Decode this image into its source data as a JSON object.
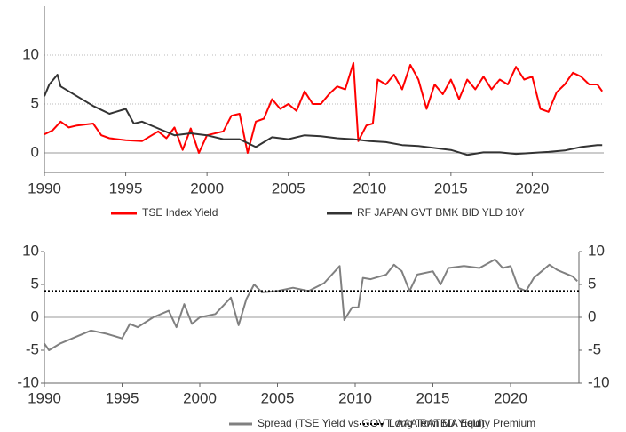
{
  "chart_data": [
    {
      "type": "line",
      "xlim": [
        1990,
        2024.4
      ],
      "xticks": [
        1990,
        1995,
        2000,
        2005,
        2010,
        2015,
        2020
      ],
      "ylim": [
        -2,
        15
      ],
      "yticks": [
        0,
        5,
        10
      ],
      "grid": true,
      "series": [
        {
          "name": "TSE Index Yield",
          "color": "#ff0000",
          "x": [
            1990,
            1990.5,
            1991,
            1991.5,
            1992,
            1993,
            1993.5,
            1994,
            1995,
            1996,
            1997,
            1997.5,
            1998,
            1998.5,
            1999,
            1999.5,
            2000,
            2001,
            2001.5,
            2002,
            2002.5,
            2003,
            2003.5,
            2004,
            2004.5,
            2005,
            2005.5,
            2006,
            2006.5,
            2007,
            2007.5,
            2008,
            2008.5,
            2009,
            2009.3,
            2009.8,
            2010.2,
            2010.5,
            2011,
            2011.5,
            2012,
            2012.5,
            2013,
            2013.5,
            2014,
            2014.5,
            2015,
            2015.5,
            2016,
            2016.5,
            2017,
            2017.5,
            2018,
            2018.5,
            2019,
            2019.5,
            2020,
            2020.5,
            2021,
            2021.5,
            2022,
            2022.5,
            2023,
            2023.5,
            2024,
            2024.3
          ],
          "values": [
            1.9,
            2.3,
            3.2,
            2.6,
            2.8,
            3.0,
            1.8,
            1.5,
            1.3,
            1.2,
            2.2,
            1.5,
            2.6,
            0.3,
            2.5,
            0.0,
            1.8,
            2.2,
            3.8,
            4.0,
            0.0,
            3.2,
            3.5,
            5.5,
            4.5,
            5.0,
            4.3,
            6.3,
            5.0,
            5.0,
            6.0,
            6.8,
            6.5,
            9.2,
            1.2,
            2.8,
            3.0,
            7.5,
            7.0,
            8.0,
            6.5,
            9.0,
            7.5,
            4.5,
            7.0,
            6.0,
            7.5,
            5.5,
            7.5,
            6.5,
            7.8,
            6.5,
            7.5,
            7.0,
            8.8,
            7.5,
            7.8,
            4.5,
            4.2,
            6.2,
            7.0,
            8.2,
            7.8,
            7.0,
            7.0,
            6.3
          ]
        },
        {
          "name": "RF JAPAN GVT BMK BID YLD 10Y",
          "color": "#333333",
          "x": [
            1990,
            1990.3,
            1990.8,
            1991,
            1992,
            1993,
            1994,
            1995,
            1995.5,
            1996,
            1997,
            1998,
            1999,
            2000,
            2001,
            2002,
            2003,
            2004,
            2005,
            2006,
            2007,
            2008,
            2009,
            2010,
            2011,
            2012,
            2013,
            2014,
            2015,
            2016,
            2017,
            2018,
            2019,
            2020,
            2021,
            2022,
            2023,
            2024,
            2024.3
          ],
          "values": [
            5.8,
            7.0,
            8.0,
            6.8,
            5.8,
            4.8,
            4.0,
            4.5,
            3.0,
            3.2,
            2.5,
            1.8,
            2.0,
            1.8,
            1.4,
            1.4,
            0.6,
            1.6,
            1.4,
            1.8,
            1.7,
            1.5,
            1.4,
            1.2,
            1.1,
            0.8,
            0.7,
            0.5,
            0.3,
            -0.2,
            0.05,
            0.05,
            -0.1,
            0.0,
            0.1,
            0.25,
            0.6,
            0.8,
            0.8
          ]
        }
      ]
    },
    {
      "type": "line",
      "xlim": [
        1990,
        2024.4
      ],
      "xticks": [
        1990,
        1995,
        2000,
        2005,
        2010,
        2015,
        2020
      ],
      "ylim": [
        -10,
        10
      ],
      "yticks": [
        -10,
        -5,
        0,
        5,
        10
      ],
      "y2lim": [
        -10,
        10
      ],
      "y2ticks": [
        -10,
        -5,
        0,
        5,
        10
      ],
      "series": [
        {
          "name": "Spread (TSE Yield vs GOVT. AAA RATED Yield)",
          "color": "#808080",
          "x": [
            1990,
            1990.3,
            1991,
            1992,
            1993,
            1994,
            1995,
            1995.5,
            1996,
            1997,
            1998,
            1998.5,
            1999,
            1999.5,
            2000,
            2001,
            2002,
            2002.5,
            2003,
            2003.5,
            2004,
            2005,
            2006,
            2007,
            2008,
            2009,
            2009.3,
            2009.8,
            2010.2,
            2010.5,
            2011,
            2012,
            2012.5,
            2013,
            2013.5,
            2014,
            2015,
            2015.5,
            2016,
            2017,
            2018,
            2019,
            2019.5,
            2020,
            2020.5,
            2021,
            2021.5,
            2022,
            2022.5,
            2023,
            2024,
            2024.3
          ],
          "values": [
            -4,
            -5,
            -4,
            -3,
            -2,
            -2.5,
            -3.2,
            -1,
            -1.5,
            0,
            1,
            -1.5,
            2.0,
            -1.0,
            0.0,
            0.5,
            3.0,
            -1.2,
            2.8,
            5.0,
            3.8,
            4.0,
            4.5,
            4.0,
            5.2,
            7.8,
            -0.4,
            1.5,
            1.5,
            6.0,
            5.8,
            6.5,
            8.0,
            7.0,
            4.0,
            6.5,
            7.0,
            5.0,
            7.5,
            7.8,
            7.5,
            8.8,
            7.5,
            7.8,
            4.5,
            4.0,
            6.0,
            7.0,
            8.0,
            7.2,
            6.2,
            5.5
          ]
        },
        {
          "name": "Long Term MA Equity Premium",
          "color": "#000000",
          "dash": true,
          "x": [
            1990,
            2024.4
          ],
          "values": [
            4,
            4
          ]
        }
      ]
    }
  ]
}
